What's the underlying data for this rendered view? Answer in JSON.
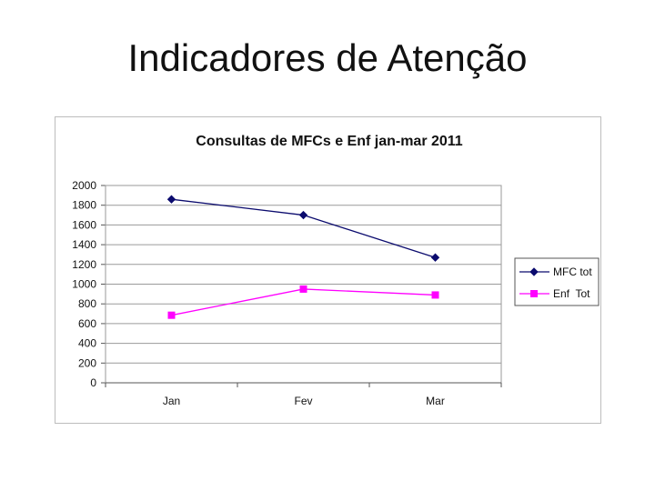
{
  "slide": {
    "title": "Indicadores de Atenção"
  },
  "chart_data": {
    "type": "line",
    "title": "Consultas de MFCs e Enf jan-mar 2011",
    "categories": [
      "Jan",
      "Fev",
      "Mar"
    ],
    "series": [
      {
        "name": "MFC tot",
        "values": [
          1860,
          1700,
          1270
        ],
        "color": "#0b0b6e",
        "marker": "diamond"
      },
      {
        "name": "Enf  Tot",
        "values": [
          685,
          950,
          890
        ],
        "color": "#ff00ff",
        "marker": "square"
      }
    ],
    "ylim": [
      0,
      2000
    ],
    "yticks": [
      "0",
      "200",
      "400",
      "600",
      "800",
      "1000",
      "1200",
      "1400",
      "1600",
      "1800",
      "2000"
    ],
    "grid": true,
    "legend": "right",
    "plot_background": "#ffffff",
    "grid_color": "#9a9a9a"
  }
}
